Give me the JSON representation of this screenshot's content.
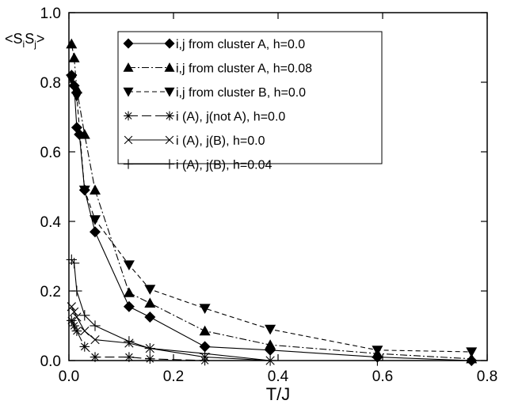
{
  "chart_data": {
    "type": "line",
    "xlabel": "T/J",
    "ylabel": "<S",
    "ylabel_sub_i": "i",
    "ylabel_mid": "S",
    "ylabel_sub_j": "j",
    "ylabel_end": ">",
    "xlim": [
      0.0,
      0.8
    ],
    "ylim": [
      0.0,
      1.0
    ],
    "xticks": [
      0.0,
      0.2,
      0.4,
      0.6,
      0.8
    ],
    "xtick_labels": [
      "0.0",
      "0.2",
      "0.4",
      "0.6",
      "0.8"
    ],
    "yticks": [
      0.0,
      0.2,
      0.4,
      0.6,
      0.8,
      1.0
    ],
    "ytick_labels": [
      "0.0",
      "0.2",
      "0.4",
      "0.6",
      "0.8",
      "1.0"
    ],
    "grid": false,
    "legend_position": "top-right",
    "series": [
      {
        "name": "i,j from cluster A, h=0.0",
        "marker": "diamond",
        "dash": "solid",
        "x": [
          0.005,
          0.01,
          0.015,
          0.02,
          0.03,
          0.05,
          0.115,
          0.155,
          0.26,
          0.385,
          0.59,
          0.77
        ],
        "y": [
          0.82,
          0.79,
          0.67,
          0.65,
          0.49,
          0.37,
          0.155,
          0.125,
          0.04,
          0.03,
          0.01,
          0.0
        ]
      },
      {
        "name": "i,j from cluster A, h=0.08",
        "marker": "triangle-up",
        "dash": "dashdot",
        "x": [
          0.005,
          0.01,
          0.015,
          0.03,
          0.05,
          0.115,
          0.155,
          0.26,
          0.385,
          0.59,
          0.77
        ],
        "y": [
          0.91,
          0.87,
          0.78,
          0.65,
          0.49,
          0.195,
          0.165,
          0.085,
          0.045,
          0.02,
          0.005
        ]
      },
      {
        "name": "i,j from cluster B, h=0.0",
        "marker": "triangle-down",
        "dash": "dashed",
        "x": [
          0.005,
          0.015,
          0.03,
          0.05,
          0.115,
          0.155,
          0.26,
          0.385,
          0.59,
          0.77
        ],
        "y": [
          0.81,
          0.76,
          0.49,
          0.405,
          0.275,
          0.205,
          0.15,
          0.09,
          0.03,
          0.025
        ]
      },
      {
        "name": "i (A), j(not A), h=0.0",
        "marker": "asterisk",
        "dash": "longdash",
        "x": [
          0.005,
          0.01,
          0.015,
          0.03,
          0.05,
          0.115,
          0.155,
          0.26
        ],
        "y": [
          0.115,
          0.1,
          0.085,
          0.04,
          0.01,
          0.01,
          0.005,
          0.0
        ]
      },
      {
        "name": "i (A), j(B), h=0.0",
        "marker": "x",
        "dash": "solid",
        "x": [
          0.005,
          0.01,
          0.015,
          0.03,
          0.05,
          0.115,
          0.155,
          0.26,
          0.385
        ],
        "y": [
          0.155,
          0.14,
          0.125,
          0.085,
          0.06,
          0.05,
          0.035,
          0.01,
          0.0
        ]
      },
      {
        "name": "i (A), j(B), h=0.04",
        "marker": "plus",
        "dash": "solid",
        "x": [
          0.005,
          0.01,
          0.015,
          0.03,
          0.05,
          0.115,
          0.155,
          0.26,
          0.385,
          0.59,
          0.77
        ],
        "y": [
          0.29,
          0.28,
          0.2,
          0.13,
          0.1,
          0.055,
          0.035,
          0.02,
          0.0,
          0.0,
          0.0
        ]
      }
    ]
  }
}
